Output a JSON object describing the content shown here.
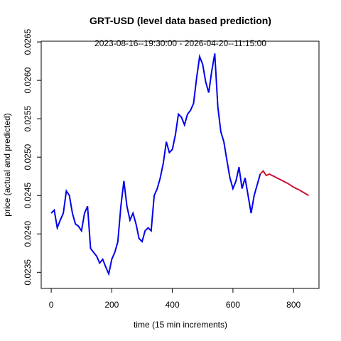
{
  "chart_data": {
    "type": "line",
    "title": "GRT-USD (level data based prediction)",
    "subtitle": "2023-08-16--19:30:00  -  2026-04-20--11:15:00",
    "xlabel": "time (15 min increments)",
    "ylabel": "price (actual and predicted)",
    "xlim": [
      -33,
      884
    ],
    "ylim": [
      0.02329,
      0.02651
    ],
    "xticks": [
      0,
      200,
      400,
      600,
      800
    ],
    "yticks": [
      0.0235,
      {
        "value": 0.024,
        "label": "0.0240"
      },
      0.0245,
      {
        "value": 0.025,
        "label": "0.0250"
      },
      0.0255,
      {
        "value": 0.026,
        "label": "0.0260"
      },
      0.0265
    ],
    "series": [
      {
        "color": "#0000ee",
        "x": [
          0,
          10,
          20,
          30,
          40,
          50,
          60,
          70,
          80,
          90,
          100,
          110,
          120,
          130,
          140,
          150,
          160,
          170,
          180,
          190,
          200,
          210,
          220,
          230,
          240,
          250,
          260,
          270,
          280,
          290,
          300,
          310,
          320,
          330,
          340,
          350,
          360,
          370,
          380,
          390,
          400,
          410,
          420,
          430,
          440,
          450,
          460,
          470,
          480,
          490,
          500,
          510,
          520,
          530,
          540,
          550,
          560,
          570,
          580,
          590,
          600,
          610,
          620,
          630,
          640,
          650,
          660,
          670,
          680,
          690
        ],
        "values": [
          0.02427,
          0.02431,
          0.02408,
          0.02418,
          0.02427,
          0.02456,
          0.0245,
          0.02427,
          0.02413,
          0.0241,
          0.02404,
          0.02427,
          0.02436,
          0.02381,
          0.02376,
          0.02371,
          0.02362,
          0.02367,
          0.02357,
          0.02348,
          0.02367,
          0.02376,
          0.0239,
          0.02436,
          0.02469,
          0.02436,
          0.02418,
          0.02427,
          0.02413,
          0.02394,
          0.0239,
          0.02404,
          0.02408,
          0.02404,
          0.0245,
          0.02459,
          0.02473,
          0.02492,
          0.0252,
          0.02506,
          0.0251,
          0.02529,
          0.02556,
          0.02552,
          0.02542,
          0.02556,
          0.02561,
          0.0257,
          0.02603,
          0.02631,
          0.02621,
          0.02598,
          0.02584,
          0.02612,
          0.02635,
          0.02566,
          0.02533,
          0.0252,
          0.02496,
          0.02473,
          0.02459,
          0.02469,
          0.02487,
          0.02459,
          0.02473,
          0.0245,
          0.02427,
          0.0245,
          0.02464,
          0.02478
        ]
      },
      {
        "color": "#cc1133",
        "x": [
          690,
          700,
          710,
          720,
          740,
          760,
          780,
          800,
          820,
          850
        ],
        "values": [
          0.02478,
          0.02482,
          0.02476,
          0.02478,
          0.02474,
          0.0247,
          0.02466,
          0.02461,
          0.02457,
          0.0245
        ]
      }
    ]
  }
}
